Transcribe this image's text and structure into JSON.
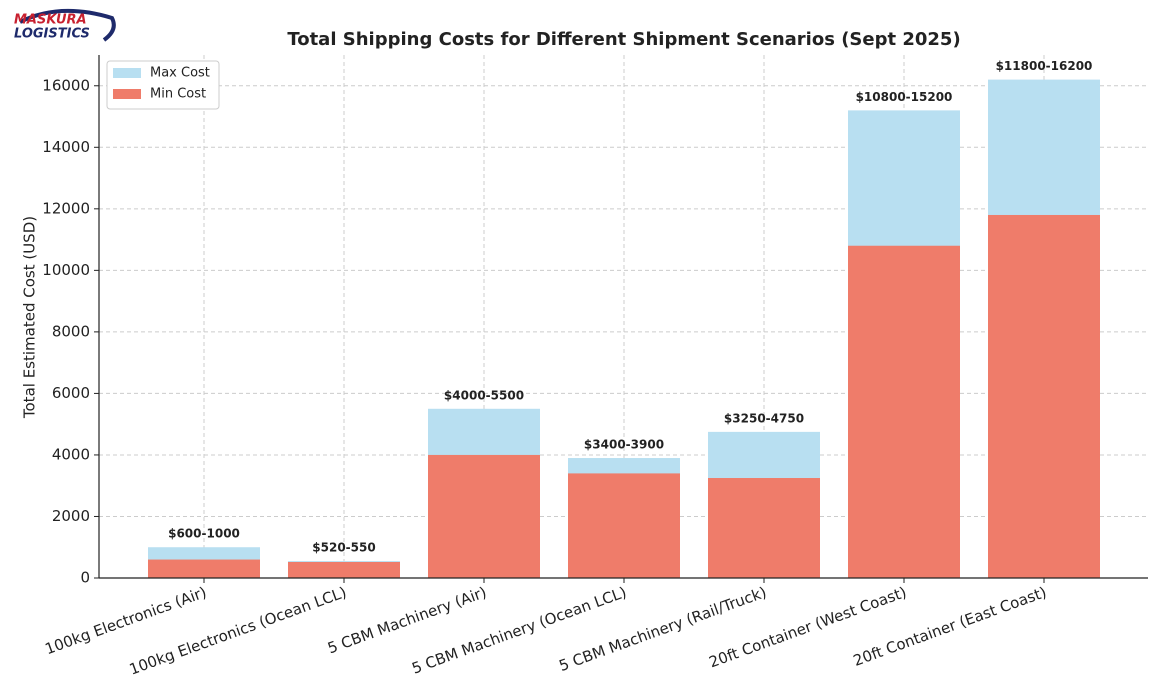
{
  "logo": {
    "line1": "MASKURA",
    "line2": "LOGISTICS"
  },
  "chart_data": {
    "type": "bar",
    "overlap": true,
    "title": "Total Shipping Costs for Different Shipment Scenarios (Sept 2025)",
    "y_label": "Total Estimated Cost (USD)",
    "categories": [
      "100kg Electronics (Air)",
      "100kg Electronics (Ocean LCL)",
      "5 CBM Machinery (Air)",
      "5 CBM Machinery (Ocean LCL)",
      "5 CBM Machinery (Rail/Truck)",
      "20ft Container (West Coast)",
      "20ft Container (East Coast)"
    ],
    "series": [
      {
        "name": "Max Cost",
        "color": "#b8dff1",
        "values": [
          1000,
          550,
          5500,
          3900,
          4750,
          15200,
          16200
        ]
      },
      {
        "name": "Min Cost",
        "color": "#ef7c6a",
        "values": [
          600,
          520,
          4000,
          3400,
          3250,
          10800,
          11800
        ]
      }
    ],
    "range_labels": [
      "$600-1000",
      "$520-550",
      "$4000-5500",
      "$3400-3900",
      "$3250-4750",
      "$10800-15200",
      "$11800-16200"
    ],
    "ylim": [
      0,
      17000
    ],
    "yticks": [
      0,
      2000,
      4000,
      6000,
      8000,
      10000,
      12000,
      14000,
      16000
    ],
    "grid": true,
    "legend": "upper-left"
  }
}
